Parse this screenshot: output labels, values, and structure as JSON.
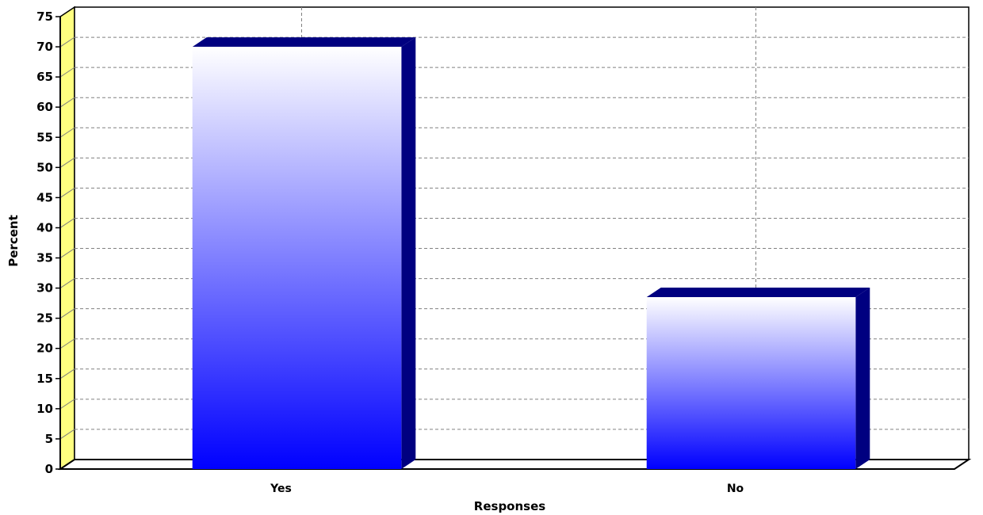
{
  "chart_data": {
    "type": "bar",
    "categories": [
      "Yes",
      "No"
    ],
    "series": [
      {
        "values": [
          70,
          28.5
        ]
      }
    ],
    "xlabel": "Responses",
    "ylabel": "Percent",
    "ylim": [
      0,
      75
    ],
    "yticks": [
      0,
      5,
      10,
      15,
      20,
      25,
      30,
      35,
      40,
      45,
      50,
      55,
      60,
      65,
      70,
      75
    ],
    "grid": true,
    "legend": "none",
    "style": {
      "three_d": true,
      "bar_gradient_top": "#ffffff",
      "bar_gradient_bottom": "#0000ff",
      "bar_side_color": "#000080",
      "wall_color": "#ffff80",
      "plot_background": "#ffffff",
      "grid_color": "#808080"
    }
  }
}
